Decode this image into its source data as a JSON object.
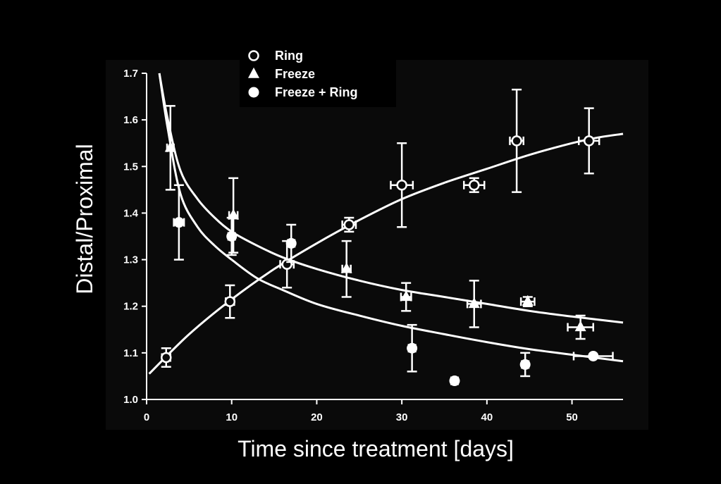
{
  "colors": {
    "background": "#000000",
    "plot_background": "#0a0a0a",
    "foreground": "#ffffff"
  },
  "chart_data": {
    "type": "scatter",
    "xlabel": "Time since treatment [days]",
    "ylabel": "Distal/Proximal",
    "xlim": [
      0,
      56
    ],
    "ylim": [
      1.0,
      1.7
    ],
    "x_ticks": [
      "0",
      "10",
      "20",
      "30",
      "40",
      "50"
    ],
    "y_ticks": [
      "1.0",
      "1.1",
      "1.2",
      "1.3",
      "1.4",
      "1.5",
      "1.6",
      "1.7"
    ],
    "grid": false,
    "legend_position": "top-center",
    "series": [
      {
        "name": "Ring",
        "marker": "open-circle",
        "points": [
          {
            "x": 2.3,
            "y": 1.09,
            "yerr": 0.02,
            "xerr": 0.5
          },
          {
            "x": 9.8,
            "y": 1.21,
            "yerr": 0.035,
            "xerr": 0.5
          },
          {
            "x": 16.5,
            "y": 1.29,
            "yerr": 0.05,
            "xerr": 0.8
          },
          {
            "x": 23.8,
            "y": 1.375,
            "yerr": 0.015,
            "xerr": 0.8
          },
          {
            "x": 30,
            "y": 1.46,
            "yerr": 0.09,
            "xerr": 1.3
          },
          {
            "x": 38.5,
            "y": 1.46,
            "yerr": 0.015,
            "xerr": 1.2
          },
          {
            "x": 43.5,
            "y": 1.555,
            "yerr": 0.11,
            "xerr": 0.8
          },
          {
            "x": 52,
            "y": 1.555,
            "yerr": 0.07,
            "xerr": 1.2
          }
        ],
        "curve": [
          [
            0.3,
            1.055
          ],
          [
            5,
            1.14
          ],
          [
            10,
            1.215
          ],
          [
            15,
            1.28
          ],
          [
            20,
            1.335
          ],
          [
            25,
            1.385
          ],
          [
            30,
            1.43
          ],
          [
            35,
            1.465
          ],
          [
            40,
            1.495
          ],
          [
            45,
            1.525
          ],
          [
            50,
            1.55
          ],
          [
            53,
            1.562
          ],
          [
            56,
            1.57
          ]
        ]
      },
      {
        "name": "Freeze",
        "marker": "filled-triangle",
        "points": [
          {
            "x": 2.8,
            "y": 1.54,
            "yerr": 0.09,
            "xerr": 0.4
          },
          {
            "x": 10.2,
            "y": 1.395,
            "yerr": 0.08,
            "xerr": 0.5
          },
          {
            "x": 23.5,
            "y": 1.28,
            "yerr": 0.06,
            "xerr": 0.5
          },
          {
            "x": 30.5,
            "y": 1.22,
            "yerr": 0.03,
            "xerr": 0.6
          },
          {
            "x": 38.5,
            "y": 1.205,
            "yerr": 0.05,
            "xerr": 0.8
          },
          {
            "x": 44.8,
            "y": 1.21,
            "yerr": 0.01,
            "xerr": 0.8
          },
          {
            "x": 51,
            "y": 1.155,
            "yerr": 0.025,
            "xerr": 1.5
          }
        ],
        "curve": [
          [
            1.5,
            1.7
          ],
          [
            2.5,
            1.6
          ],
          [
            4,
            1.49
          ],
          [
            6,
            1.43
          ],
          [
            8,
            1.39
          ],
          [
            10,
            1.36
          ],
          [
            13,
            1.33
          ],
          [
            16,
            1.305
          ],
          [
            20,
            1.28
          ],
          [
            25,
            1.255
          ],
          [
            30,
            1.235
          ],
          [
            35,
            1.22
          ],
          [
            40,
            1.205
          ],
          [
            45,
            1.19
          ],
          [
            50,
            1.178
          ],
          [
            56,
            1.165
          ]
        ]
      },
      {
        "name": "Freeze + Ring",
        "marker": "filled-circle",
        "points": [
          {
            "x": 3.8,
            "y": 1.38,
            "yerr": 0.08,
            "xerr": 0.6
          },
          {
            "x": 10,
            "y": 1.35,
            "yerr": 0.04,
            "xerr": 0.4
          },
          {
            "x": 17,
            "y": 1.335,
            "yerr": 0.04,
            "xerr": 0.4
          },
          {
            "x": 31.2,
            "y": 1.11,
            "yerr": 0.05,
            "xerr": 0.4
          },
          {
            "x": 36.2,
            "y": 1.04,
            "yerr": 0.0,
            "xerr": 0.4
          },
          {
            "x": 44.5,
            "y": 1.075,
            "yerr": 0.025,
            "xerr": 0.4
          },
          {
            "x": 52.5,
            "y": 1.093,
            "yerr": 0.0,
            "xerr": 2.3
          }
        ],
        "curve": [
          [
            1.5,
            1.7
          ],
          [
            2.5,
            1.58
          ],
          [
            4,
            1.44
          ],
          [
            6,
            1.37
          ],
          [
            8,
            1.33
          ],
          [
            10,
            1.3
          ],
          [
            13,
            1.26
          ],
          [
            16,
            1.235
          ],
          [
            20,
            1.205
          ],
          [
            25,
            1.18
          ],
          [
            30,
            1.158
          ],
          [
            35,
            1.14
          ],
          [
            40,
            1.123
          ],
          [
            45,
            1.108
          ],
          [
            50,
            1.096
          ],
          [
            56,
            1.082
          ]
        ]
      }
    ]
  }
}
